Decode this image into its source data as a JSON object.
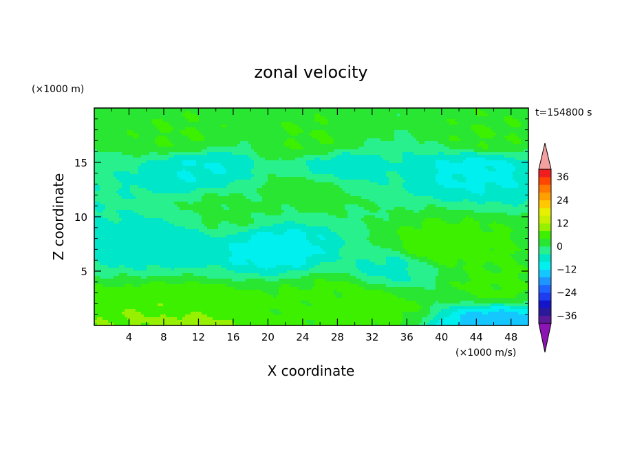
{
  "chart_data": {
    "type": "heatmap",
    "title": "zonal velocity",
    "xlabel": "X coordinate",
    "ylabel": "Z coordinate",
    "x_unit": "(×1000 m/s)",
    "y_unit": "(×1000 m)",
    "time_label": "t=154800 s",
    "xlim": [
      0,
      50
    ],
    "ylim": [
      0,
      20
    ],
    "x_ticks": [
      4,
      8,
      12,
      16,
      20,
      24,
      28,
      32,
      36,
      40,
      44,
      48
    ],
    "y_ticks": [
      5,
      10,
      15
    ],
    "colorbar": {
      "levels": [
        -40,
        -36,
        -32,
        -28,
        -24,
        -20,
        -16,
        -12,
        -8,
        -4,
        0,
        4,
        8,
        12,
        16,
        20,
        24,
        28,
        32,
        36,
        40
      ],
      "labels": [
        -36,
        -24,
        -12,
        0,
        12,
        24,
        36
      ],
      "colors": [
        "#5a1a9a",
        "#2a1a9a",
        "#1414c8",
        "#1e3cf0",
        "#1e64ff",
        "#1e96ff",
        "#14c8ff",
        "#00f0f0",
        "#00e6c8",
        "#28f08c",
        "#28e632",
        "#3cf000",
        "#96f000",
        "#c8f000",
        "#e6f000",
        "#ffc800",
        "#ffa000",
        "#ff7800",
        "#ff4600",
        "#f01e1e"
      ],
      "under_color": "#8c14b4",
      "over_color": "#f5a0a0"
    },
    "field_features": [
      {
        "x": 10,
        "z": 0.6,
        "value": 10
      },
      {
        "x": 10,
        "z": 1.2,
        "value": 6
      },
      {
        "x": 22,
        "z": 1.5,
        "value": 5
      },
      {
        "x": 29,
        "z": 2.8,
        "value": 5
      },
      {
        "x": 32,
        "z": 2.0,
        "value": 6
      },
      {
        "x": 40,
        "z": 7.3,
        "value": 6
      },
      {
        "x": 46,
        "z": 3.5,
        "value": 5
      },
      {
        "x": 21,
        "z": 7.0,
        "value": -10
      },
      {
        "x": 8,
        "z": 7.5,
        "value": -6
      },
      {
        "x": 34,
        "z": 5.0,
        "value": -5
      },
      {
        "x": 12,
        "z": 14.5,
        "value": -8
      },
      {
        "x": 28,
        "z": 14.5,
        "value": -6
      },
      {
        "x": 44,
        "z": 14.5,
        "value": -9
      },
      {
        "x": 46,
        "z": 0.2,
        "value": -14
      },
      {
        "x": 25,
        "z": 17.0,
        "value": 4
      },
      {
        "x": 10,
        "z": 17.2,
        "value": 4
      },
      {
        "x": 45,
        "z": 17.2,
        "value": 4
      },
      {
        "x": 25,
        "z": 12.5,
        "value": 2
      },
      {
        "x": 15,
        "z": 10.5,
        "value": 1
      }
    ]
  }
}
